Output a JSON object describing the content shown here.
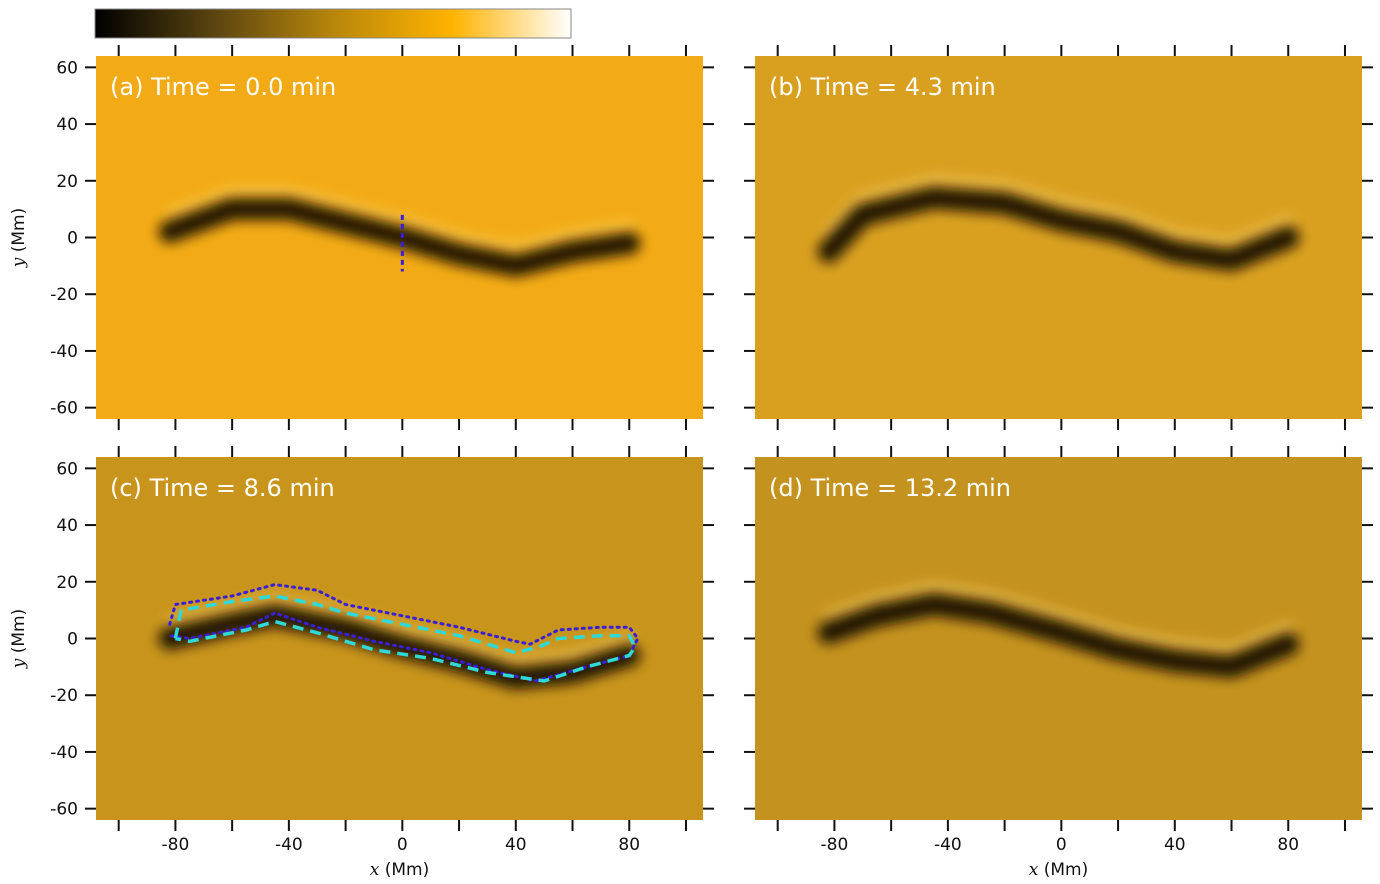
{
  "chart_data": {
    "type": "heatmap",
    "colormap": [
      "#000000",
      "#5a4410",
      "#b8860b",
      "#ffb300",
      "#ffffff"
    ],
    "x": {
      "label_var": "x",
      "label_unit": " (Mm)",
      "ticks": [
        -80,
        -40,
        0,
        40,
        80
      ],
      "range": [
        -108,
        106
      ]
    },
    "y": {
      "label_var": "y",
      "label_unit": " (Mm)",
      "ticks": [
        60,
        40,
        20,
        0,
        -20,
        -40,
        -60
      ],
      "tick_labels": [
        "60",
        "40",
        "20",
        "0",
        "-20",
        "-40",
        "-60"
      ],
      "range": [
        -64,
        64
      ]
    },
    "panels": [
      {
        "label": "(a) Time = 0.0 min",
        "background": "#f2ab16",
        "filament": [
          [
            -82,
            2
          ],
          [
            -60,
            10
          ],
          [
            -40,
            10
          ],
          [
            -20,
            5
          ],
          [
            0,
            0
          ],
          [
            20,
            -6
          ],
          [
            40,
            -10
          ],
          [
            60,
            -5
          ],
          [
            80,
            -2
          ]
        ],
        "cut": {
          "x": 0,
          "y1": 8,
          "y2": -12
        }
      },
      {
        "label": "(b) Time = 4.3 min",
        "background": "#d9a020",
        "filament": [
          [
            -82,
            -5
          ],
          [
            -70,
            8
          ],
          [
            -45,
            14
          ],
          [
            -20,
            12
          ],
          [
            0,
            6
          ],
          [
            20,
            2
          ],
          [
            40,
            -5
          ],
          [
            60,
            -8
          ],
          [
            80,
            0
          ]
        ]
      },
      {
        "label": "(c) Time = 8.6 min",
        "background": "#c8941c",
        "filament": [
          [
            -82,
            0
          ],
          [
            -60,
            5
          ],
          [
            -45,
            8
          ],
          [
            -20,
            3
          ],
          [
            0,
            -3
          ],
          [
            20,
            -8
          ],
          [
            40,
            -14
          ],
          [
            60,
            -12
          ],
          [
            80,
            -6
          ]
        ],
        "outer_contour": [
          [
            -82,
            5
          ],
          [
            -80,
            12
          ],
          [
            -60,
            15
          ],
          [
            -45,
            19
          ],
          [
            -30,
            17
          ],
          [
            -20,
            12
          ],
          [
            0,
            8
          ],
          [
            20,
            4
          ],
          [
            40,
            -1
          ],
          [
            45,
            -2
          ],
          [
            55,
            3
          ],
          [
            70,
            4
          ],
          [
            80,
            4
          ],
          [
            83,
            0
          ],
          [
            80,
            -6
          ],
          [
            65,
            -10
          ],
          [
            47,
            -15
          ],
          [
            30,
            -11
          ],
          [
            10,
            -5
          ],
          [
            -10,
            -1
          ],
          [
            -30,
            4
          ],
          [
            -45,
            9
          ],
          [
            -55,
            4
          ],
          [
            -75,
            0
          ],
          [
            -82,
            1
          ]
        ],
        "inner_contour": [
          [
            -80,
            0
          ],
          [
            -78,
            10
          ],
          [
            -60,
            13
          ],
          [
            -45,
            15
          ],
          [
            -30,
            12
          ],
          [
            -20,
            9
          ],
          [
            0,
            5
          ],
          [
            20,
            1
          ],
          [
            40,
            -5
          ],
          [
            48,
            -3
          ],
          [
            55,
            0
          ],
          [
            70,
            1
          ],
          [
            80,
            1
          ],
          [
            82,
            -3
          ],
          [
            80,
            -6
          ],
          [
            65,
            -10
          ],
          [
            50,
            -15
          ],
          [
            30,
            -12
          ],
          [
            10,
            -7
          ],
          [
            -10,
            -4
          ],
          [
            -30,
            2
          ],
          [
            -45,
            6
          ],
          [
            -55,
            3
          ],
          [
            -75,
            -1
          ],
          [
            -80,
            0
          ]
        ]
      },
      {
        "label": "(d) Time = 13.2 min",
        "background": "#c4921e",
        "filament": [
          [
            -82,
            2
          ],
          [
            -65,
            8
          ],
          [
            -45,
            12
          ],
          [
            -25,
            9
          ],
          [
            0,
            2
          ],
          [
            20,
            -4
          ],
          [
            40,
            -8
          ],
          [
            60,
            -10
          ],
          [
            80,
            -2
          ]
        ]
      }
    ]
  }
}
